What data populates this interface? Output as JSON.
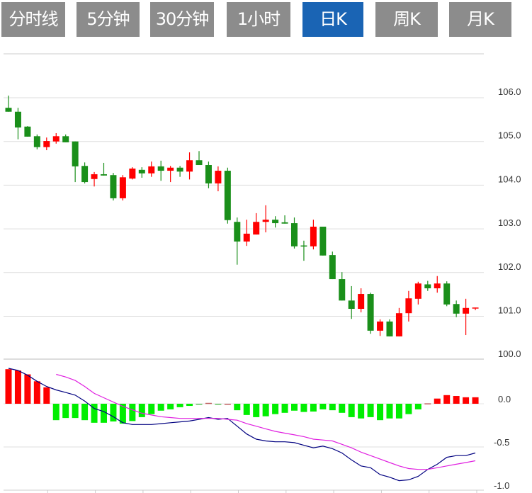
{
  "tabs": [
    {
      "label": "分时线",
      "active": false
    },
    {
      "label": "5分钟",
      "active": false
    },
    {
      "label": "30分钟",
      "active": false
    },
    {
      "label": "1小时",
      "active": false
    },
    {
      "label": "日K",
      "active": true
    },
    {
      "label": "周K",
      "active": false
    },
    {
      "label": "月K",
      "active": false
    }
  ],
  "colors": {
    "tab_bg": "#8c8c8c",
    "tab_active": "#1a64b4",
    "up": "#ff0000",
    "down": "#1a8f1a",
    "hist_down": "#00ee00",
    "dif": "#000080",
    "dea": "#e020e0"
  },
  "chart_data": [
    {
      "type": "candlestick",
      "y_ticks": [
        "106.0",
        "105.0",
        "104.0",
        "103.0",
        "102.0",
        "101.0",
        "100.0"
      ],
      "ylim": [
        100,
        107
      ],
      "grid": true,
      "ohlc": [
        [
          105.77,
          106.05,
          105.68,
          105.68
        ],
        [
          105.68,
          105.77,
          105.05,
          105.32
        ],
        [
          105.34,
          105.35,
          105.11,
          105.11
        ],
        [
          105.12,
          105.16,
          104.82,
          104.87
        ],
        [
          104.87,
          105.09,
          104.8,
          105.01
        ],
        [
          105.0,
          105.19,
          104.95,
          105.12
        ],
        [
          105.12,
          105.16,
          104.98,
          104.98
        ],
        [
          105.0,
          105.0,
          104.07,
          104.43
        ],
        [
          104.44,
          104.52,
          104.04,
          104.07
        ],
        [
          104.14,
          104.3,
          103.97,
          104.25
        ],
        [
          104.25,
          104.51,
          104.22,
          104.22
        ],
        [
          104.23,
          104.28,
          103.65,
          103.7
        ],
        [
          103.7,
          104.23,
          103.65,
          104.18
        ],
        [
          104.15,
          104.41,
          104.13,
          104.38
        ],
        [
          104.35,
          104.41,
          104.17,
          104.27
        ],
        [
          104.27,
          104.54,
          104.19,
          104.43
        ],
        [
          104.43,
          104.56,
          104.1,
          104.33
        ],
        [
          104.33,
          104.44,
          104.07,
          104.4
        ],
        [
          104.4,
          104.44,
          104.19,
          104.31
        ],
        [
          104.31,
          104.75,
          104.13,
          104.57
        ],
        [
          104.57,
          104.78,
          104.46,
          104.46
        ],
        [
          104.46,
          104.54,
          103.93,
          104.04
        ],
        [
          104.04,
          104.43,
          103.86,
          104.33
        ],
        [
          104.33,
          104.4,
          103.12,
          103.2
        ],
        [
          103.16,
          103.26,
          102.18,
          102.71
        ],
        [
          102.71,
          103.21,
          102.61,
          102.89
        ],
        [
          102.87,
          103.36,
          102.87,
          103.16
        ],
        [
          103.16,
          103.54,
          102.92,
          103.21
        ],
        [
          103.21,
          103.29,
          103.03,
          103.13
        ],
        [
          103.15,
          103.31,
          103.12,
          103.12
        ],
        [
          103.13,
          103.26,
          102.55,
          102.6
        ],
        [
          102.62,
          102.73,
          102.27,
          102.6
        ],
        [
          102.6,
          103.21,
          102.53,
          103.05
        ],
        [
          103.05,
          103.05,
          102.39,
          102.39
        ],
        [
          102.4,
          102.48,
          101.85,
          101.85
        ],
        [
          101.85,
          102.01,
          101.36,
          101.36
        ],
        [
          101.36,
          101.69,
          100.94,
          101.17
        ],
        [
          101.17,
          101.64,
          101.09,
          101.51
        ],
        [
          101.51,
          101.54,
          100.6,
          100.67
        ],
        [
          100.67,
          100.93,
          100.55,
          100.88
        ],
        [
          100.88,
          100.93,
          100.54,
          100.54
        ],
        [
          100.54,
          101.19,
          100.54,
          101.07
        ],
        [
          101.07,
          101.58,
          100.88,
          101.41
        ],
        [
          101.4,
          101.79,
          101.27,
          101.75
        ],
        [
          101.73,
          101.81,
          101.58,
          101.64
        ],
        [
          101.64,
          101.92,
          101.54,
          101.75
        ],
        [
          101.75,
          101.8,
          101.23,
          101.27
        ],
        [
          101.28,
          101.36,
          100.98,
          101.06
        ],
        [
          101.06,
          101.4,
          100.57,
          101.19
        ],
        [
          101.19,
          101.2,
          101.14,
          101.2
        ]
      ]
    },
    {
      "type": "macd",
      "y_ticks": [
        "0.0",
        "-0.5",
        "-1.0"
      ],
      "ylim": [
        -1.0,
        0.5
      ],
      "grid": true,
      "histogram": [
        0.4,
        0.385,
        0.34,
        0.26,
        0.19,
        -0.19,
        -0.165,
        -0.165,
        -0.19,
        -0.22,
        -0.22,
        -0.205,
        -0.23,
        -0.2,
        -0.155,
        -0.12,
        -0.08,
        -0.065,
        -0.04,
        -0.025,
        -0.005,
        0.01,
        -0.01,
        0,
        -0.075,
        -0.13,
        -0.155,
        -0.145,
        -0.12,
        -0.105,
        -0.08,
        -0.095,
        -0.09,
        -0.065,
        -0.075,
        -0.105,
        -0.155,
        -0.17,
        -0.155,
        -0.19,
        -0.17,
        -0.17,
        -0.12,
        -0.065,
        0.005,
        0.06,
        0.1,
        0.09,
        0.075,
        0.075
      ],
      "dif": [
        0.41,
        0.385,
        0.33,
        0.26,
        0.2,
        0.16,
        0.13,
        0.1,
        0.03,
        -0.055,
        -0.09,
        -0.15,
        -0.22,
        -0.24,
        -0.24,
        -0.24,
        -0.23,
        -0.22,
        -0.21,
        -0.2,
        -0.18,
        -0.16,
        -0.18,
        -0.17,
        -0.26,
        -0.35,
        -0.41,
        -0.43,
        -0.44,
        -0.44,
        -0.45,
        -0.48,
        -0.51,
        -0.49,
        -0.52,
        -0.57,
        -0.65,
        -0.72,
        -0.74,
        -0.82,
        -0.85,
        -0.89,
        -0.88,
        -0.84,
        -0.76,
        -0.7,
        -0.62,
        -0.6,
        -0.6,
        -0.57
      ],
      "dea": [
        null,
        null,
        null,
        null,
        null,
        0.34,
        0.31,
        0.27,
        0.2,
        0.12,
        0.07,
        0.02,
        -0.03,
        -0.07,
        -0.11,
        -0.13,
        -0.15,
        -0.16,
        -0.17,
        -0.17,
        -0.17,
        -0.17,
        -0.17,
        -0.18,
        -0.19,
        -0.23,
        -0.26,
        -0.29,
        -0.32,
        -0.34,
        -0.36,
        -0.38,
        -0.41,
        -0.42,
        -0.43,
        -0.47,
        -0.51,
        -0.56,
        -0.6,
        -0.64,
        -0.68,
        -0.72,
        -0.75,
        -0.76,
        -0.76,
        -0.74,
        -0.72,
        -0.7,
        -0.68,
        -0.66
      ]
    }
  ]
}
